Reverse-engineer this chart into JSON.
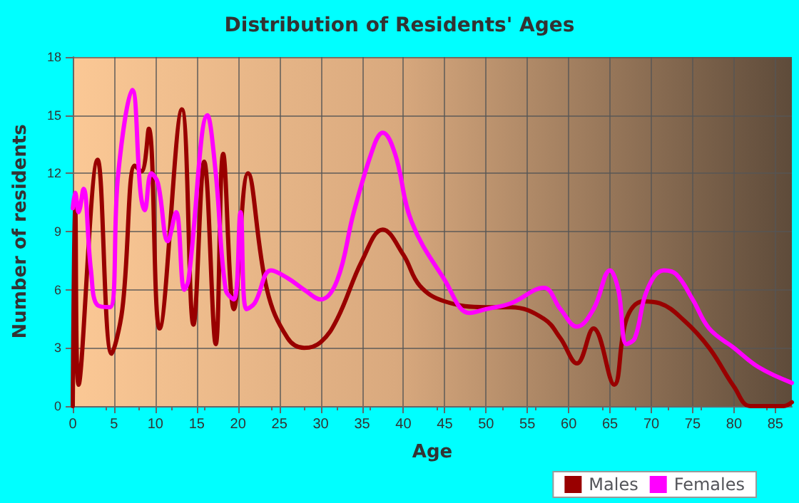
{
  "chart_data": {
    "type": "line",
    "title": "Distribution of Residents' Ages",
    "xlabel": "Age",
    "ylabel": "Number of residents",
    "xlim": [
      0,
      87
    ],
    "xticks": [
      0,
      5,
      10,
      15,
      20,
      25,
      30,
      35,
      40,
      45,
      50,
      55,
      60,
      65,
      70,
      75,
      80,
      85
    ],
    "ylim": [
      0,
      18
    ],
    "yticks": [
      0,
      3,
      6,
      9,
      12,
      15,
      18
    ],
    "grid": true,
    "legend": "bottom right",
    "marker": "none",
    "line_style": "solid",
    "series": [
      {
        "name": "Males",
        "color": "#990000",
        "x": [
          0,
          0.3,
          0.7,
          3,
          4.7,
          6,
          7.5,
          8.3,
          9.2,
          10.5,
          13.2,
          14.6,
          15.9,
          17.3,
          18.2,
          19.5,
          21.2,
          23.5,
          26,
          28,
          30,
          32,
          35,
          37.5,
          40,
          42,
          45,
          50,
          53,
          57,
          59,
          61,
          63,
          65.5,
          67,
          69,
          71,
          74,
          77,
          80,
          82,
          86,
          87
        ],
        "values": [
          0,
          10.2,
          1.1,
          12.7,
          2.7,
          5,
          12.4,
          12.1,
          14.3,
          4,
          15.3,
          4.2,
          12.6,
          3.2,
          13,
          5,
          12,
          6,
          3.5,
          3,
          3.3,
          4.5,
          7.5,
          9.1,
          7.8,
          6.2,
          5.4,
          5.1,
          5.1,
          4.5,
          3.5,
          2.2,
          4,
          1.1,
          4.5,
          5.4,
          5.3,
          4.4,
          3,
          1,
          0,
          0,
          0.2
        ]
      },
      {
        "name": "Females",
        "color": "#ff00ff",
        "x": [
          0,
          0.3,
          0.7,
          1.3,
          2.2,
          3,
          4.5,
          5.5,
          7.2,
          8.2,
          8.7,
          9.5,
          10.3,
          11.5,
          12.5,
          13.5,
          14,
          16.3,
          17.3,
          18.5,
          19.5,
          20.3,
          21,
          22,
          24,
          26,
          28,
          30,
          32,
          34,
          36.5,
          37.5,
          39,
          41,
          45,
          48,
          50,
          53,
          57,
          59,
          61,
          63,
          65,
          66,
          67,
          68,
          69.5,
          71.5,
          73,
          75,
          77,
          80,
          83,
          87
        ],
        "values": [
          10.2,
          11,
          10,
          11.2,
          7,
          5.2,
          5.1,
          12,
          16.3,
          11,
          10.1,
          12,
          11.5,
          8.5,
          10,
          6,
          6.5,
          15,
          12,
          6,
          5.5,
          10,
          5,
          5.3,
          7,
          6.6,
          6,
          5.5,
          6.5,
          10,
          13.5,
          14.1,
          13,
          9.5,
          6.5,
          4.8,
          5,
          5.3,
          6.1,
          5,
          4.1,
          5,
          7,
          6,
          3.2,
          3.5,
          6,
          7,
          6.8,
          5.5,
          4,
          3,
          2,
          1.2
        ]
      }
    ]
  }
}
